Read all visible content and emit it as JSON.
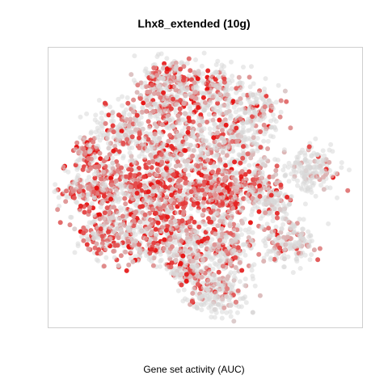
{
  "chart_data": {
    "type": "scatter",
    "title": "Lhx8_extended (10g)",
    "xlabel": "",
    "ylabel": "",
    "color_legend_title": "Gene set activity (AUC)",
    "color_scale": {
      "low": "#d9d9d9",
      "high": "#e80000"
    },
    "grid": false,
    "axes_ticks": false
  }
}
